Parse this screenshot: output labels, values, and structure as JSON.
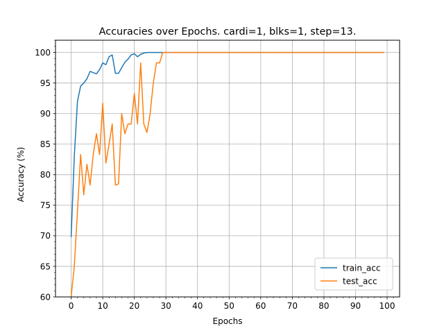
{
  "chart_data": {
    "type": "line",
    "title": "Accuracies over Epochs. cardi=1, blks=1, step=13.",
    "xlabel": "Epochs",
    "ylabel": "Accuracy (%)",
    "xlim": [
      -4.95,
      103.95
    ],
    "ylim": [
      60,
      102
    ],
    "xticks": [
      0,
      10,
      20,
      30,
      40,
      50,
      60,
      70,
      80,
      90,
      100
    ],
    "yticks": [
      60,
      65,
      70,
      75,
      80,
      85,
      90,
      95,
      100
    ],
    "grid": true,
    "legend_position": "lower-right",
    "x": [
      0,
      1,
      2,
      3,
      4,
      5,
      6,
      7,
      8,
      9,
      10,
      11,
      12,
      13,
      14,
      15,
      16,
      17,
      18,
      19,
      20,
      21,
      22,
      23,
      24,
      25,
      26,
      27,
      28,
      29,
      30,
      31,
      32,
      33,
      34,
      35,
      36,
      37,
      38,
      39,
      40,
      41,
      42,
      43,
      44,
      45,
      46,
      47,
      48,
      49,
      50,
      51,
      52,
      53,
      54,
      55,
      56,
      57,
      58,
      59,
      60,
      61,
      62,
      63,
      64,
      65,
      66,
      67,
      68,
      69,
      70,
      71,
      72,
      73,
      74,
      75,
      76,
      77,
      78,
      79,
      80,
      81,
      82,
      83,
      84,
      85,
      86,
      87,
      88,
      89,
      90,
      91,
      92,
      93,
      94,
      95,
      96,
      97,
      98,
      99
    ],
    "series": [
      {
        "name": "train_acc",
        "color": "#1f77b4",
        "values": [
          69.8,
          83.0,
          92.0,
          94.5,
          95.0,
          95.7,
          96.9,
          96.7,
          96.5,
          97.2,
          98.3,
          98.0,
          99.3,
          99.6,
          96.6,
          96.6,
          97.5,
          98.4,
          98.9,
          99.6,
          99.8,
          99.3,
          99.7,
          99.9,
          100,
          100,
          100,
          100,
          100,
          100,
          100,
          100,
          100,
          100,
          100,
          100,
          100,
          100,
          100,
          100,
          100,
          100,
          100,
          100,
          100,
          100,
          100,
          100,
          100,
          100,
          100,
          100,
          100,
          100,
          100,
          100,
          100,
          100,
          100,
          100,
          100,
          100,
          100,
          100,
          100,
          100,
          100,
          100,
          100,
          100,
          100,
          100,
          100,
          100,
          100,
          100,
          100,
          100,
          100,
          100,
          100,
          100,
          100,
          100,
          100,
          100,
          100,
          100,
          100,
          100,
          100,
          100,
          100,
          100,
          100,
          100,
          100,
          100,
          100,
          100
        ]
      },
      {
        "name": "test_acc",
        "color": "#ff7f0e",
        "values": [
          60.0,
          65.0,
          74.0,
          83.3,
          76.7,
          81.7,
          78.3,
          83.3,
          86.7,
          83.3,
          91.7,
          81.9,
          85.0,
          88.3,
          78.3,
          78.5,
          90.0,
          86.7,
          88.3,
          88.3,
          93.3,
          88.3,
          98.3,
          88.3,
          86.9,
          90.0,
          95.0,
          98.3,
          98.3,
          100,
          100,
          100,
          100,
          100,
          100,
          100,
          100,
          100,
          100,
          100,
          100,
          100,
          100,
          100,
          100,
          100,
          100,
          100,
          100,
          100,
          100,
          100,
          100,
          100,
          100,
          100,
          100,
          100,
          100,
          100,
          100,
          100,
          100,
          100,
          100,
          100,
          100,
          100,
          100,
          100,
          100,
          100,
          100,
          100,
          100,
          100,
          100,
          100,
          100,
          100,
          100,
          100,
          100,
          100,
          100,
          100,
          100,
          100,
          100,
          100,
          100,
          100,
          100,
          100,
          100,
          100,
          100,
          100,
          100,
          100
        ]
      }
    ]
  }
}
